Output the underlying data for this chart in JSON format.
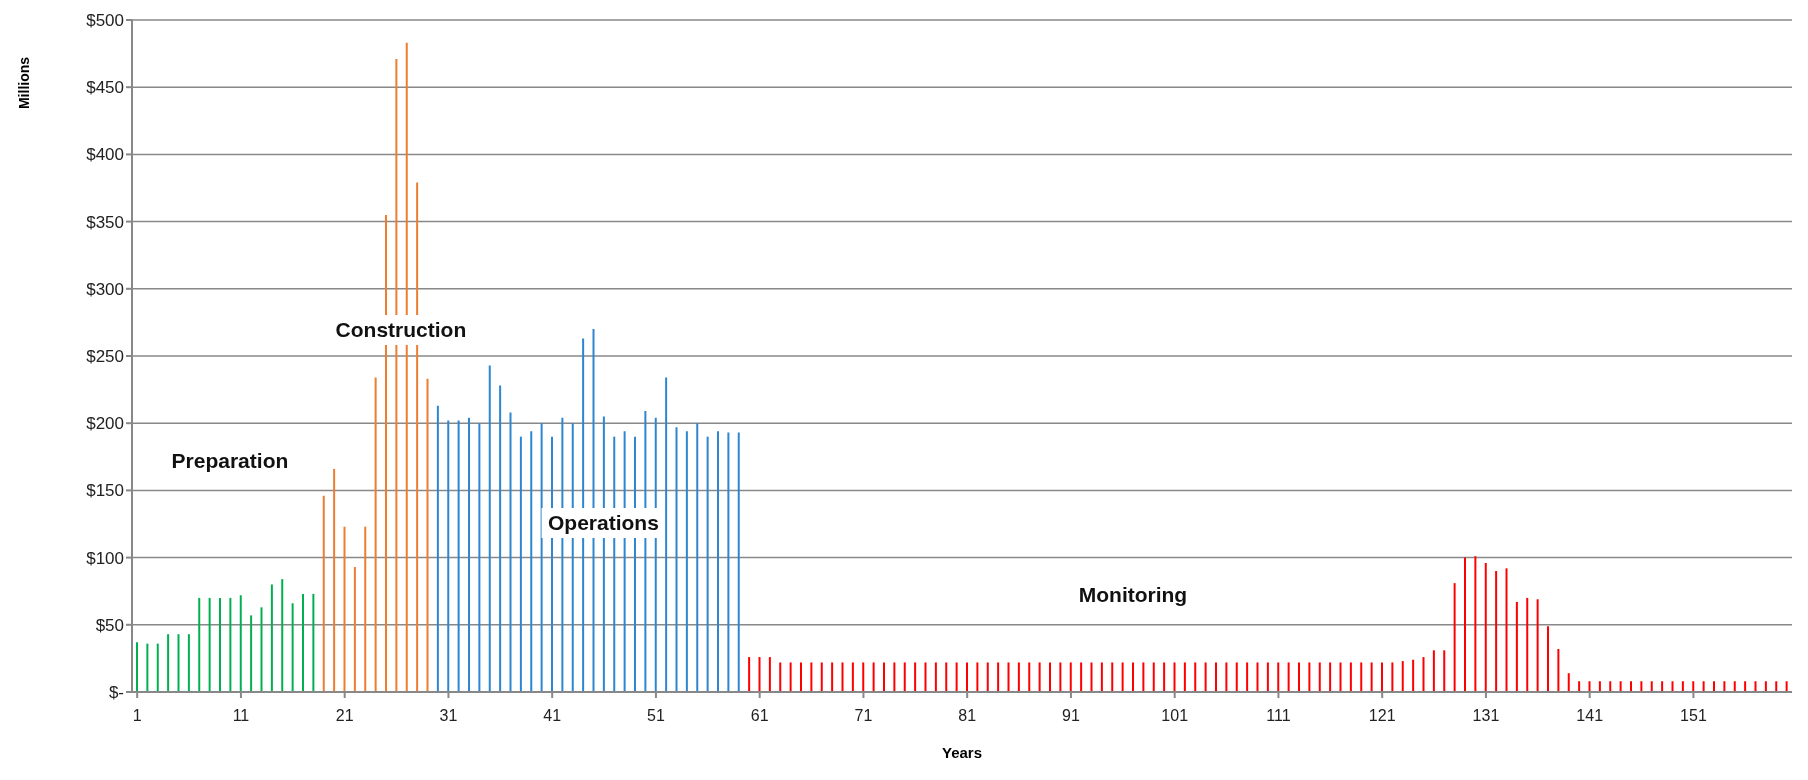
{
  "chart_data": {
    "type": "bar",
    "xlabel": "Years",
    "ylabel": "Millions",
    "xlim": [
      0.5,
      160.5
    ],
    "xticks": [
      1,
      11,
      21,
      31,
      41,
      51,
      61,
      71,
      81,
      91,
      101,
      111,
      121,
      131,
      141,
      151
    ],
    "ylim": [
      0,
      500
    ],
    "yticks": [
      {
        "value": 0,
        "label": "$-"
      },
      {
        "value": 50,
        "label": "$50"
      },
      {
        "value": 100,
        "label": "$100"
      },
      {
        "value": 150,
        "label": "$150"
      },
      {
        "value": 200,
        "label": "$200"
      },
      {
        "value": 250,
        "label": "$250"
      },
      {
        "value": 300,
        "label": "$300"
      },
      {
        "value": 350,
        "label": "$350"
      },
      {
        "value": 400,
        "label": "$400"
      },
      {
        "value": 450,
        "label": "$450"
      },
      {
        "value": 500,
        "label": "$500"
      }
    ],
    "grid": "y",
    "legend": false,
    "series": [
      {
        "color": "#00b050",
        "x": [
          1,
          2,
          3,
          4,
          5,
          6,
          7,
          8,
          9,
          10,
          11,
          12,
          13,
          14,
          15,
          16,
          17,
          18
        ],
        "values": [
          37,
          36,
          36,
          43,
          43,
          43,
          70,
          70,
          70,
          70,
          72,
          57,
          63,
          80,
          84,
          66,
          73,
          73
        ]
      },
      {
        "color": "#ed7d31",
        "x": [
          19,
          20,
          21,
          22,
          23,
          24,
          25,
          26,
          27,
          28,
          29
        ],
        "values": [
          146,
          166,
          123,
          93,
          123,
          234,
          355,
          471,
          483,
          379,
          233
        ]
      },
      {
        "color": "#2e86d0",
        "x": [
          30,
          31,
          32,
          33,
          34,
          35,
          36,
          37,
          38,
          39,
          40,
          41,
          42,
          43,
          44,
          45,
          46,
          47,
          48,
          49,
          50,
          51,
          52,
          53,
          54,
          55,
          56,
          57,
          58,
          59
        ],
        "values": [
          213,
          202,
          202,
          204,
          200,
          243,
          228,
          208,
          190,
          194,
          200,
          190,
          204,
          200,
          263,
          270,
          205,
          190,
          194,
          190,
          209,
          204,
          234,
          197,
          194,
          200,
          190,
          194,
          193,
          193
        ]
      },
      {
        "color": "#ff0000",
        "x": [
          60,
          61,
          62,
          63,
          64,
          65,
          66,
          67,
          68,
          69,
          70,
          71,
          72,
          73,
          74,
          75,
          76,
          77,
          78,
          79,
          80,
          81,
          82,
          83,
          84,
          85,
          86,
          87,
          88,
          89,
          90,
          91,
          92,
          93,
          94,
          95,
          96,
          97,
          98,
          99,
          100,
          101,
          102,
          103,
          104,
          105,
          106,
          107,
          108,
          109,
          110,
          111,
          112,
          113,
          114,
          115,
          116,
          117,
          118,
          119,
          120,
          121,
          122,
          123,
          124,
          125,
          126,
          127,
          128,
          129,
          130,
          131,
          132,
          133,
          134,
          135,
          136,
          137,
          138,
          139,
          140,
          141,
          142,
          143,
          144,
          145,
          146,
          147,
          148,
          149,
          150,
          151,
          152,
          153,
          154,
          155,
          156,
          157,
          158,
          159,
          160
        ],
        "values": [
          26,
          26,
          26,
          22,
          22,
          22,
          22,
          22,
          22,
          22,
          22,
          22,
          22,
          22,
          22,
          22,
          22,
          22,
          22,
          22,
          22,
          22,
          22,
          22,
          22,
          22,
          22,
          22,
          22,
          22,
          22,
          22,
          22,
          22,
          22,
          22,
          22,
          22,
          22,
          22,
          22,
          22,
          22,
          22,
          22,
          22,
          22,
          22,
          22,
          22,
          22,
          22,
          22,
          22,
          22,
          22,
          22,
          22,
          22,
          22,
          22,
          22,
          22,
          23,
          24,
          26,
          31,
          31,
          81,
          100,
          101,
          96,
          90,
          92,
          67,
          70,
          69,
          49,
          32,
          14,
          8,
          8,
          8,
          8,
          8,
          8,
          8,
          8,
          8,
          8,
          8,
          8,
          8,
          8,
          8,
          8,
          8,
          8,
          8,
          8,
          8
        ]
      }
    ],
    "annotations": [
      "Preparation",
      "Construction",
      "Operations",
      "Monitoring"
    ]
  }
}
